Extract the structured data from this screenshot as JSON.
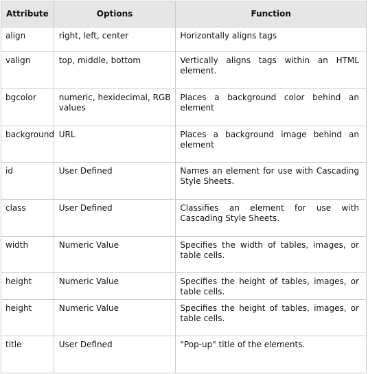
{
  "table": {
    "headers": [
      "Attribute",
      "Options",
      "Function"
    ],
    "rows": [
      {
        "attribute": "align",
        "options": "right, left, center",
        "function": "Horizontally aligns tags"
      },
      {
        "attribute": "valign",
        "options": "top, middle, bottom",
        "function": "Vertically aligns tags within an HTML element."
      },
      {
        "attribute": "bgcolor",
        "options": "numeric, hexidecimal, RGB values",
        "function": "Places a background color behind an element"
      },
      {
        "attribute": "background",
        "options": "URL",
        "function": "Places a background image behind an element"
      },
      {
        "attribute": "id",
        "options": "User Defined",
        "function": "Names an element for use with Cascading Style Sheets."
      },
      {
        "attribute": "class",
        "options": "User Defined",
        "function": "Classifies an element for use with Cascading Style Sheets."
      },
      {
        "attribute": "width",
        "options": "Numeric Value",
        "function": "Specifies the width of tables, images, or table cells."
      },
      {
        "attribute": "height",
        "options": "Numeric Value",
        "function": "Specifies the height of tables, images, or table cells."
      },
      {
        "attribute": "height",
        "options": "Numeric Value",
        "function": "Specifies the height of tables, images, or table cells."
      },
      {
        "attribute": "title",
        "options": "User Defined",
        "function": "\"Pop-up\" title of the elements."
      }
    ]
  }
}
